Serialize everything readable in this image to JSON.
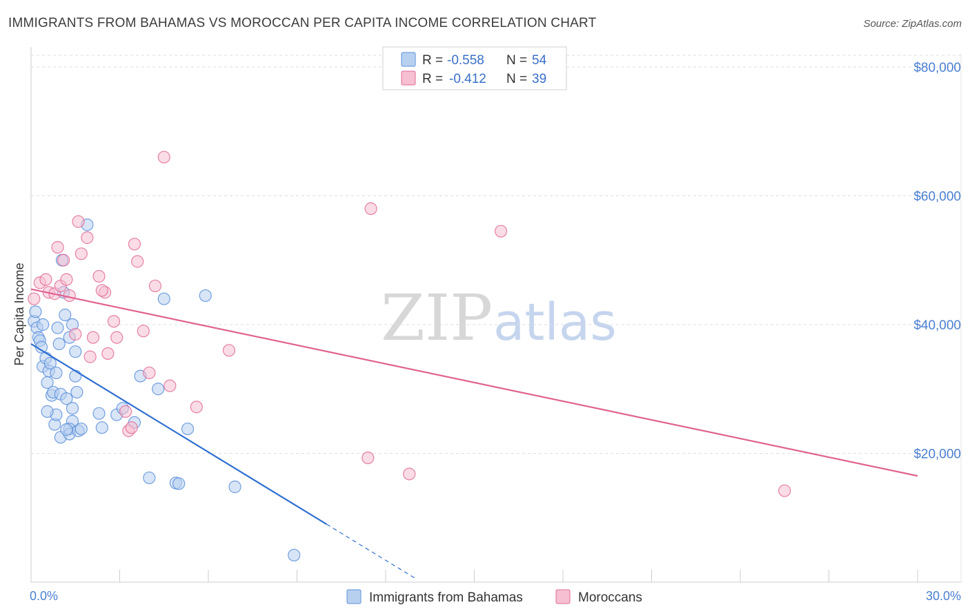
{
  "chart_data": {
    "type": "scatter",
    "title": "IMMIGRANTS FROM BAHAMAS VS MOROCCAN PER CAPITA INCOME CORRELATION CHART",
    "source": "Source: ZipAtlas.com",
    "xlabel": "",
    "ylabel": "Per Capita Income",
    "xlim": [
      0,
      30
    ],
    "ylim": [
      0,
      80000
    ],
    "x_unit": "%",
    "x_tick_labels": [
      "0.0%",
      "30.0%"
    ],
    "y_ticks": [
      20000,
      40000,
      60000,
      80000
    ],
    "y_tick_labels": [
      "$20,000",
      "$40,000",
      "$60,000",
      "$80,000"
    ],
    "grid": true,
    "watermark": {
      "zip": "ZIP",
      "atlas": "atlas"
    },
    "stats_legend": {
      "r_label": "R =",
      "n_label": "N =",
      "rows": [
        {
          "r": "-0.558",
          "n": "54"
        },
        {
          "r": "-0.412",
          "n": "39"
        }
      ]
    },
    "series": [
      {
        "name": "Immigrants from Bahamas",
        "color": "#5b8fd9",
        "fill": "#b8d0f0",
        "trend": {
          "x0": 0.0,
          "y0": 37000,
          "x1": 10.0,
          "y1": 9000,
          "dash_to_x": 13.0
        },
        "points": [
          [
            0.1,
            40500
          ],
          [
            0.15,
            42000
          ],
          [
            0.2,
            39500
          ],
          [
            0.25,
            38000
          ],
          [
            0.3,
            37500
          ],
          [
            0.35,
            36500
          ],
          [
            0.4,
            33500
          ],
          [
            0.5,
            34800
          ],
          [
            0.55,
            31000
          ],
          [
            0.6,
            32800
          ],
          [
            0.65,
            34000
          ],
          [
            0.7,
            29000
          ],
          [
            0.75,
            29500
          ],
          [
            0.8,
            24500
          ],
          [
            0.85,
            26000
          ],
          [
            0.4,
            40000
          ],
          [
            0.9,
            39500
          ],
          [
            0.95,
            37000
          ],
          [
            1.0,
            29200
          ],
          [
            1.05,
            50000
          ],
          [
            1.1,
            45000
          ],
          [
            1.15,
            41500
          ],
          [
            1.0,
            22500
          ],
          [
            1.2,
            28500
          ],
          [
            1.3,
            38000
          ],
          [
            1.4,
            25000
          ],
          [
            1.3,
            23800
          ],
          [
            1.5,
            32000
          ],
          [
            1.4,
            27000
          ],
          [
            1.3,
            23000
          ],
          [
            1.4,
            40000
          ],
          [
            1.5,
            35800
          ],
          [
            1.55,
            29500
          ],
          [
            1.6,
            23500
          ],
          [
            1.7,
            23800
          ],
          [
            1.9,
            55500
          ],
          [
            2.3,
            26200
          ],
          [
            2.4,
            24000
          ],
          [
            2.9,
            26000
          ],
          [
            3.1,
            27000
          ],
          [
            3.5,
            24800
          ],
          [
            3.7,
            32000
          ],
          [
            4.0,
            16200
          ],
          [
            4.3,
            30000
          ],
          [
            4.5,
            44000
          ],
          [
            4.9,
            15400
          ],
          [
            5.0,
            15300
          ],
          [
            5.3,
            23800
          ],
          [
            5.9,
            44500
          ],
          [
            6.9,
            14800
          ],
          [
            8.9,
            4200
          ],
          [
            1.2,
            23700
          ],
          [
            0.55,
            26500
          ],
          [
            0.85,
            32500
          ]
        ]
      },
      {
        "name": "Moroccans",
        "color": "#e06b96",
        "fill": "#f6bfd2",
        "trend": {
          "x0": 0.0,
          "y0": 45500,
          "x1": 30.0,
          "y1": 16500
        },
        "points": [
          [
            0.1,
            44000
          ],
          [
            0.3,
            46500
          ],
          [
            0.5,
            47000
          ],
          [
            0.6,
            45000
          ],
          [
            0.8,
            44800
          ],
          [
            0.9,
            52000
          ],
          [
            1.1,
            50000
          ],
          [
            1.0,
            46000
          ],
          [
            1.2,
            47000
          ],
          [
            1.3,
            44500
          ],
          [
            1.5,
            38500
          ],
          [
            1.6,
            56000
          ],
          [
            1.7,
            51000
          ],
          [
            1.9,
            53500
          ],
          [
            2.0,
            35000
          ],
          [
            2.1,
            38000
          ],
          [
            2.3,
            47500
          ],
          [
            2.5,
            45000
          ],
          [
            2.4,
            45300
          ],
          [
            2.6,
            35500
          ],
          [
            2.8,
            40500
          ],
          [
            2.9,
            38000
          ],
          [
            3.2,
            26500
          ],
          [
            3.3,
            23500
          ],
          [
            3.4,
            24000
          ],
          [
            3.5,
            52500
          ],
          [
            3.6,
            49800
          ],
          [
            3.8,
            39000
          ],
          [
            4.0,
            32500
          ],
          [
            4.2,
            46000
          ],
          [
            4.5,
            66000
          ],
          [
            4.7,
            30500
          ],
          [
            5.6,
            27200
          ],
          [
            6.7,
            36000
          ],
          [
            11.4,
            19300
          ],
          [
            11.5,
            58000
          ],
          [
            12.8,
            16800
          ],
          [
            15.9,
            54500
          ],
          [
            25.5,
            14200
          ]
        ]
      }
    ]
  },
  "colors": {
    "blue_line": "#2f6fd0",
    "pink_line": "#e0628f",
    "grid": "#dddddd",
    "axis": "#cccccc"
  }
}
